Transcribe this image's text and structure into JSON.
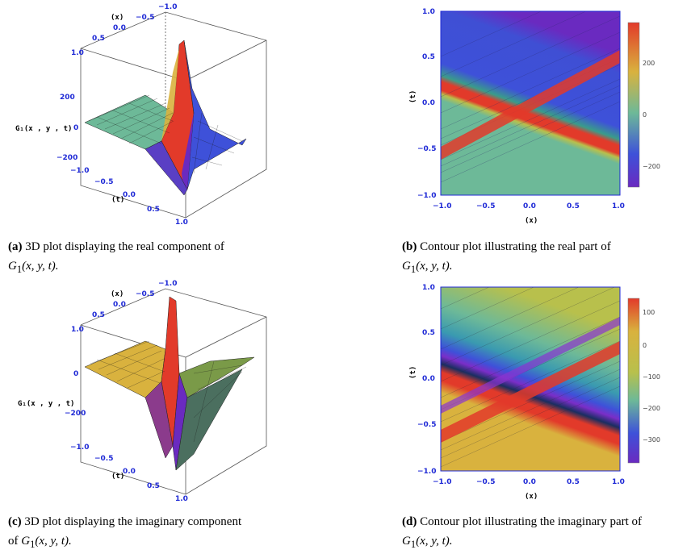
{
  "colors": {
    "tick_blue": "#1f2ad6",
    "teal": "#6db998",
    "red": "#e23a2a",
    "blue": "#3e51d9",
    "purple": "#6a2ac0",
    "yellow_green": "#b8c04c",
    "orange_yellow": "#d9b23e"
  },
  "panels": [
    {
      "id": "a",
      "caption_tag": "(a)",
      "caption_text": "3D plot displaying the real component of",
      "caption_func": "G",
      "caption_sub": "1",
      "caption_args": "(x, y, t).",
      "zlabel": "G₁(x , y , t)",
      "xlabel": "(x)",
      "tlabel": "(t)",
      "x_ticks": [
        "1.0",
        "0.5",
        "0.0",
        "−0.5",
        "−1.0"
      ],
      "t_ticks": [
        "−1.0",
        "−0.5",
        "0.0",
        "0.5",
        "1.0"
      ],
      "z_ticks": [
        "200",
        "0",
        "−200"
      ],
      "x_corner": "1.0"
    },
    {
      "id": "b",
      "caption_tag": "(b)",
      "caption_text": "Contour plot illustrating the real part of",
      "caption_func": "G",
      "caption_sub": "1",
      "caption_args": "(x, y, t).",
      "xlabel": "(x)",
      "ylabel": "(t)",
      "x_ticks": [
        "−1.0",
        "−0.5",
        "0.0",
        "0.5",
        "1.0"
      ],
      "y_ticks": [
        "1.0",
        "0.5",
        "0.0",
        "−0.5",
        "−1.0"
      ],
      "cb_ticks": [
        "200",
        "0",
        "−200"
      ]
    },
    {
      "id": "c",
      "caption_tag": "(c)",
      "caption_text": "3D plot displaying the imaginary component",
      "caption_line2": "of",
      "caption_func": "G",
      "caption_sub": "1",
      "caption_args": "(x, y, t).",
      "zlabel": "G₁(x , y , t)",
      "xlabel": "(x)",
      "tlabel": "(t)",
      "x_ticks": [
        "1.0",
        "0.5",
        "0.0",
        "−0.5",
        "−1.0"
      ],
      "t_ticks": [
        "−1.0",
        "−0.5",
        "0.0",
        "0.5",
        "1.0"
      ],
      "z_ticks": [
        "0",
        "−200"
      ]
    },
    {
      "id": "d",
      "caption_tag": "(d)",
      "caption_text": "Contour plot illustrating the imaginary part of",
      "caption_func": "G",
      "caption_sub": "1",
      "caption_args": "(x, y, t).",
      "xlabel": "(x)",
      "ylabel": "(t)",
      "x_ticks": [
        "−1.0",
        "−0.5",
        "0.0",
        "0.5",
        "1.0"
      ],
      "y_ticks": [
        "1.0",
        "0.5",
        "0.0",
        "−0.5",
        "−1.0"
      ],
      "cb_ticks": [
        "100",
        "0",
        "−100",
        "−200",
        "−300"
      ]
    }
  ]
}
